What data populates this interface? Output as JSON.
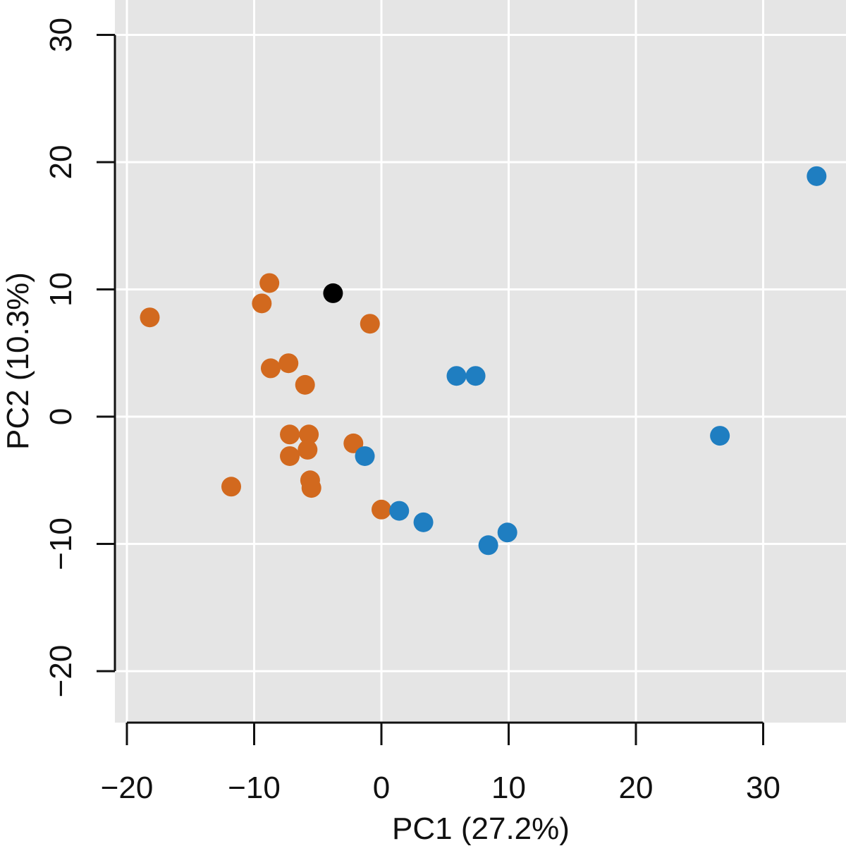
{
  "chart_data": {
    "type": "scatter",
    "xlabel": "PC1 (27.2%)",
    "ylabel": "PC2 (10.3%)",
    "xlim": [
      -20.5,
      36.5
    ],
    "ylim": [
      -24,
      32.5
    ],
    "x_ticks": [
      -20,
      -10,
      0,
      10,
      20,
      30
    ],
    "x_tick_labels": [
      "−20",
      "−10",
      "0",
      "10",
      "20",
      "30"
    ],
    "y_ticks": [
      -20,
      -10,
      0,
      10,
      20,
      30
    ],
    "y_tick_labels": [
      "−20",
      "−10",
      "0",
      "10",
      "20",
      "30"
    ],
    "grid": true,
    "legend": "none",
    "colors": {
      "panel_background": "#e5e5e5",
      "grid": "#ffffff",
      "axis": "#111111"
    },
    "series": [
      {
        "color": "#d2691e",
        "points": [
          [
            -18.2,
            7.8
          ],
          [
            -8.8,
            10.5
          ],
          [
            -9.4,
            8.9
          ],
          [
            -0.9,
            7.3
          ],
          [
            -8.7,
            3.8
          ],
          [
            -7.3,
            4.2
          ],
          [
            -6.0,
            2.5
          ],
          [
            -7.2,
            -1.4
          ],
          [
            -5.7,
            -1.4
          ],
          [
            -5.8,
            -2.6
          ],
          [
            -7.2,
            -3.1
          ],
          [
            -2.2,
            -2.1
          ],
          [
            -11.8,
            -5.5
          ],
          [
            -5.6,
            -5.0
          ],
          [
            -5.5,
            -5.6
          ],
          [
            0.0,
            -7.3
          ]
        ]
      },
      {
        "color": "#1f7ec1",
        "points": [
          [
            34.2,
            18.9
          ],
          [
            5.9,
            3.2
          ],
          [
            7.4,
            3.2
          ],
          [
            26.6,
            -1.5
          ],
          [
            -1.3,
            -3.1
          ],
          [
            1.4,
            -7.4
          ],
          [
            3.3,
            -8.3
          ],
          [
            9.9,
            -9.1
          ],
          [
            8.4,
            -10.1
          ]
        ]
      },
      {
        "color": "#000000",
        "points": [
          [
            -3.8,
            9.7
          ]
        ]
      }
    ]
  }
}
